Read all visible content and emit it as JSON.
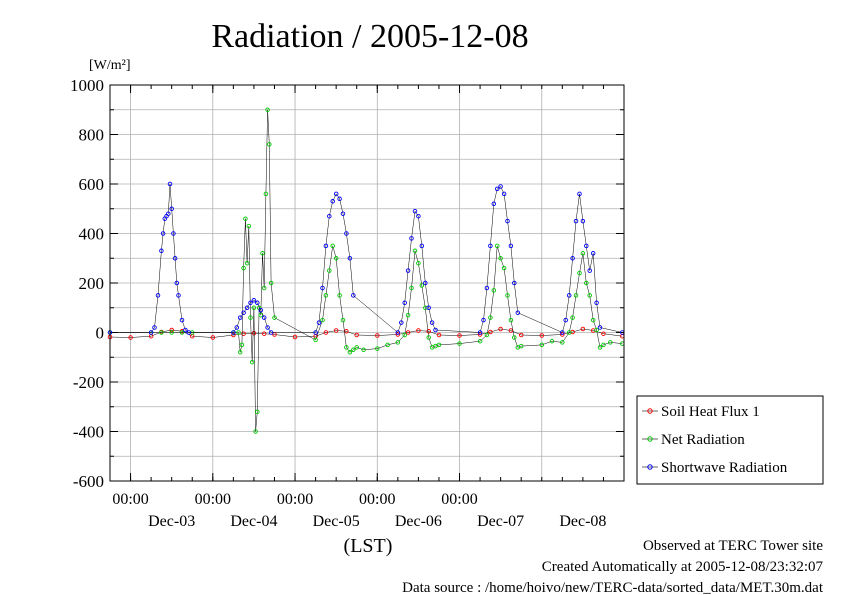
{
  "chart_data": {
    "type": "line",
    "title": "Radiation / 2005-12-08",
    "y_unit_label": "[W/m²]",
    "xlabel": "(LST)",
    "ylim": [
      -600,
      1000
    ],
    "yticks": [
      -600,
      -400,
      -200,
      0,
      200,
      400,
      600,
      800,
      1000
    ],
    "y_minor_step": 100,
    "xlim_days": [
      "2005-12-02 18:00",
      "2005-12-08 24:00"
    ],
    "midnight_tick_label": "00:00",
    "day_ticks": [
      "2005-12-03",
      "2005-12-04",
      "2005-12-05",
      "2005-12-06",
      "2005-12-07",
      "2005-12-08"
    ],
    "day_labels": [
      "Dec-03",
      "Dec-04",
      "Dec-05",
      "Dec-06",
      "Dec-07",
      "Dec-08"
    ],
    "grid": true,
    "legend_position": "right",
    "series": [
      {
        "name": "Soil Heat Flux 1",
        "color": "#ff0000",
        "marker": "circle",
        "x": [
          "2005-12-02 18:00",
          "2005-12-03 00:00",
          "2005-12-03 06:00",
          "2005-12-03 09:00",
          "2005-12-03 12:00",
          "2005-12-03 15:00",
          "2005-12-03 18:00",
          "2005-12-04 00:00",
          "2005-12-04 06:00",
          "2005-12-04 09:00",
          "2005-12-04 12:00",
          "2005-12-04 15:00",
          "2005-12-04 18:00",
          "2005-12-05 00:00",
          "2005-12-05 06:00",
          "2005-12-05 09:00",
          "2005-12-05 12:00",
          "2005-12-05 15:00",
          "2005-12-05 18:00",
          "2005-12-06 00:00",
          "2005-12-06 06:00",
          "2005-12-06 09:00",
          "2005-12-06 12:00",
          "2005-12-06 15:00",
          "2005-12-06 18:00",
          "2005-12-07 00:00",
          "2005-12-07 06:00",
          "2005-12-07 09:00",
          "2005-12-07 12:00",
          "2005-12-07 15:00",
          "2005-12-07 18:00",
          "2005-12-08 00:00",
          "2005-12-08 06:00",
          "2005-12-08 09:00",
          "2005-12-08 12:00",
          "2005-12-08 15:00",
          "2005-12-08 18:00",
          "2005-12-08 23:30"
        ],
        "y": [
          -18,
          -20,
          -15,
          2,
          10,
          5,
          -15,
          -20,
          -10,
          -5,
          -3,
          -5,
          -8,
          -18,
          -15,
          0,
          8,
          5,
          -10,
          -12,
          -8,
          0,
          8,
          5,
          -10,
          -12,
          -8,
          2,
          14,
          8,
          -10,
          -12,
          -8,
          2,
          14,
          8,
          -5,
          -15
        ]
      },
      {
        "name": "Net Radiation",
        "color": "#00cc00",
        "marker": "circle",
        "x": [
          "2005-12-02 18:00",
          "2005-12-03 06:00",
          "2005-12-03 09:00",
          "2005-12-03 12:00",
          "2005-12-03 15:00",
          "2005-12-03 18:00",
          "2005-12-04 06:00",
          "2005-12-04 07:30",
          "2005-12-04 08:00",
          "2005-12-04 08:30",
          "2005-12-04 09:00",
          "2005-12-04 09:30",
          "2005-12-04 10:00",
          "2005-12-04 10:30",
          "2005-12-04 11:00",
          "2005-12-04 11:30",
          "2005-12-04 12:00",
          "2005-12-04 12:30",
          "2005-12-04 13:00",
          "2005-12-04 13:30",
          "2005-12-04 14:00",
          "2005-12-04 14:30",
          "2005-12-04 15:00",
          "2005-12-04 15:30",
          "2005-12-04 16:00",
          "2005-12-04 16:30",
          "2005-12-04 17:00",
          "2005-12-04 18:00",
          "2005-12-05 06:00",
          "2005-12-05 08:00",
          "2005-12-05 09:00",
          "2005-12-05 10:00",
          "2005-12-05 11:00",
          "2005-12-05 12:00",
          "2005-12-05 13:00",
          "2005-12-05 14:00",
          "2005-12-05 15:00",
          "2005-12-05 16:00",
          "2005-12-05 17:00",
          "2005-12-05 18:00",
          "2005-12-05 20:00",
          "2005-12-06 00:00",
          "2005-12-06 03:00",
          "2005-12-06 06:00",
          "2005-12-06 08:00",
          "2005-12-06 09:00",
          "2005-12-06 10:00",
          "2005-12-06 11:00",
          "2005-12-06 12:00",
          "2005-12-06 13:00",
          "2005-12-06 14:00",
          "2005-12-06 15:00",
          "2005-12-06 16:00",
          "2005-12-06 17:00",
          "2005-12-06 18:00",
          "2005-12-07 00:00",
          "2005-12-07 06:00",
          "2005-12-07 08:00",
          "2005-12-07 09:00",
          "2005-12-07 10:00",
          "2005-12-07 11:00",
          "2005-12-07 12:00",
          "2005-12-07 13:00",
          "2005-12-07 14:00",
          "2005-12-07 15:00",
          "2005-12-07 16:00",
          "2005-12-07 17:00",
          "2005-12-07 18:00",
          "2005-12-08 00:00",
          "2005-12-08 03:00",
          "2005-12-08 06:00",
          "2005-12-08 08:00",
          "2005-12-08 09:00",
          "2005-12-08 10:00",
          "2005-12-08 11:00",
          "2005-12-08 12:00",
          "2005-12-08 13:00",
          "2005-12-08 14:00",
          "2005-12-08 15:00",
          "2005-12-08 16:00",
          "2005-12-08 17:00",
          "2005-12-08 18:00",
          "2005-12-08 20:00",
          "2005-12-08 23:30"
        ],
        "y": [
          0,
          0,
          0,
          0,
          0,
          0,
          0,
          0,
          -80,
          -50,
          260,
          460,
          280,
          430,
          60,
          -120,
          100,
          -400,
          -320,
          100,
          70,
          320,
          180,
          560,
          900,
          760,
          200,
          60,
          -30,
          50,
          150,
          250,
          350,
          300,
          150,
          50,
          -60,
          -80,
          -70,
          -60,
          -70,
          -65,
          -50,
          -40,
          -10,
          70,
          180,
          330,
          280,
          190,
          100,
          -20,
          -60,
          -55,
          -50,
          -45,
          -35,
          -10,
          60,
          170,
          350,
          300,
          260,
          150,
          50,
          -20,
          -60,
          -55,
          -50,
          -35,
          -40,
          0,
          60,
          150,
          240,
          320,
          200,
          150,
          50,
          10,
          -60,
          -50,
          -40,
          -45
        ]
      },
      {
        "name": "Shortwave Radiation",
        "color": "#0000ff",
        "marker": "circle",
        "x": [
          "2005-12-02 18:00",
          "2005-12-03 06:00",
          "2005-12-03 07:00",
          "2005-12-03 08:00",
          "2005-12-03 09:00",
          "2005-12-03 09:30",
          "2005-12-03 10:00",
          "2005-12-03 10:30",
          "2005-12-03 11:00",
          "2005-12-03 11:30",
          "2005-12-03 12:00",
          "2005-12-03 12:30",
          "2005-12-03 13:00",
          "2005-12-03 13:30",
          "2005-12-03 14:00",
          "2005-12-03 15:00",
          "2005-12-03 16:00",
          "2005-12-03 17:00",
          "2005-12-04 06:00",
          "2005-12-04 07:00",
          "2005-12-04 08:00",
          "2005-12-04 09:00",
          "2005-12-04 10:00",
          "2005-12-04 11:00",
          "2005-12-04 12:00",
          "2005-12-04 13:00",
          "2005-12-04 14:00",
          "2005-12-04 15:00",
          "2005-12-04 16:00",
          "2005-12-04 17:00",
          "2005-12-05 06:00",
          "2005-12-05 07:00",
          "2005-12-05 08:00",
          "2005-12-05 09:00",
          "2005-12-05 10:00",
          "2005-12-05 11:00",
          "2005-12-05 12:00",
          "2005-12-05 13:00",
          "2005-12-05 14:00",
          "2005-12-05 15:00",
          "2005-12-05 16:00",
          "2005-12-05 17:00",
          "2005-12-06 06:00",
          "2005-12-06 07:00",
          "2005-12-06 08:00",
          "2005-12-06 09:00",
          "2005-12-06 10:00",
          "2005-12-06 11:00",
          "2005-12-06 12:00",
          "2005-12-06 13:00",
          "2005-12-06 14:00",
          "2005-12-06 15:00",
          "2005-12-06 16:00",
          "2005-12-06 17:00",
          "2005-12-07 06:00",
          "2005-12-07 07:00",
          "2005-12-07 08:00",
          "2005-12-07 09:00",
          "2005-12-07 10:00",
          "2005-12-07 11:00",
          "2005-12-07 12:00",
          "2005-12-07 13:00",
          "2005-12-07 14:00",
          "2005-12-07 15:00",
          "2005-12-07 16:00",
          "2005-12-07 17:00",
          "2005-12-08 06:00",
          "2005-12-08 07:00",
          "2005-12-08 08:00",
          "2005-12-08 09:00",
          "2005-12-08 10:00",
          "2005-12-08 11:00",
          "2005-12-08 12:00",
          "2005-12-08 13:00",
          "2005-12-08 14:00",
          "2005-12-08 15:00",
          "2005-12-08 16:00",
          "2005-12-08 17:00",
          "2005-12-08 23:30"
        ],
        "y": [
          0,
          0,
          20,
          150,
          330,
          400,
          460,
          470,
          480,
          600,
          500,
          400,
          300,
          200,
          150,
          50,
          10,
          0,
          0,
          20,
          60,
          80,
          100,
          120,
          130,
          120,
          90,
          60,
          20,
          0,
          0,
          40,
          180,
          350,
          470,
          530,
          560,
          540,
          480,
          400,
          300,
          150,
          0,
          40,
          120,
          250,
          380,
          490,
          470,
          350,
          200,
          100,
          40,
          10,
          0,
          50,
          180,
          350,
          520,
          580,
          590,
          560,
          450,
          350,
          200,
          80,
          0,
          50,
          150,
          300,
          450,
          560,
          450,
          350,
          250,
          320,
          120,
          20,
          0
        ]
      }
    ]
  },
  "footer": {
    "line1": "Observed at TERC Tower site",
    "line2": "Created Automatically at 2005-12-08/23:32:07",
    "line3": "Data source : /home/hoivo/new/TERC-data/sorted_data/MET.30m.dat"
  }
}
